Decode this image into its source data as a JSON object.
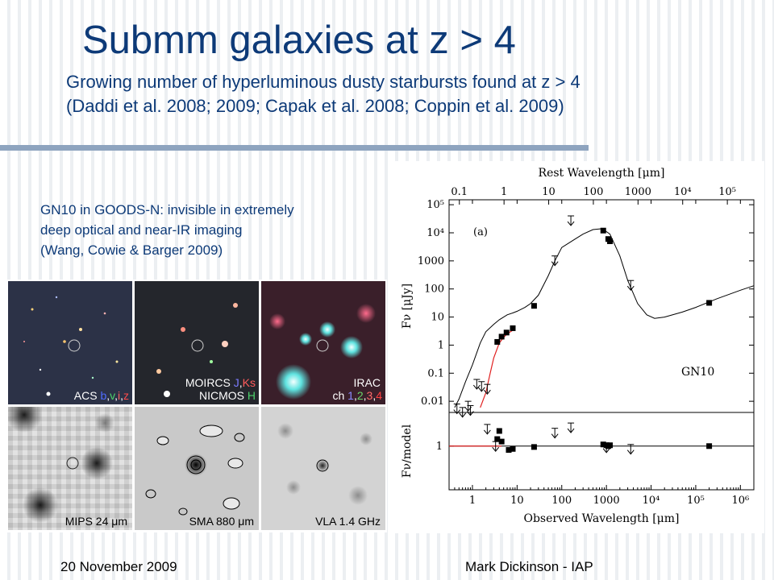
{
  "slide": {
    "title": "Submm galaxies at z > 4",
    "subtitle_lines": [
      "Growing number of hyperluminous dusty starbursts found at z > 4",
      "(Daddi et al. 2008; 2009; Capak et al. 2008; Coppin et al. 2009)"
    ],
    "caption_lines": [
      "GN10 in GOODS-N: invisible in extremely",
      "deep optical and near-IR imaging",
      "(Wang, Cowie & Barger 2009)"
    ],
    "footer_left": "20 November 2009",
    "footer_right": "Mark Dickinson - IAP",
    "colors": {
      "title": "#0d3a78",
      "rule": "#8ea4bf"
    }
  },
  "image_panels": [
    {
      "name": "acs",
      "label": "ACS",
      "bands": [
        {
          "t": "b",
          "c": "#4f6cff"
        },
        {
          "t": ",",
          "c": "#ffffff"
        },
        {
          "t": "v",
          "c": "#4bd16a"
        },
        {
          "t": ",",
          "c": "#ffffff"
        },
        {
          "t": "i",
          "c": "#ff6161"
        },
        {
          "t": ",",
          "c": "#ffffff"
        },
        {
          "t": "z",
          "c": "#ff4a4a"
        }
      ]
    },
    {
      "name": "moircs",
      "line1": "MOIRCS",
      "line1_bands": [
        {
          "t": "J",
          "c": "#7b7bff"
        },
        {
          "t": ",",
          "c": "#ffffff"
        },
        {
          "t": "Ks",
          "c": "#ff5b5b"
        }
      ],
      "line2": "NICMOS",
      "line2_band": "H",
      "line2_band_color": "#4bd16a"
    },
    {
      "name": "irac",
      "line1": "IRAC",
      "line2": "ch",
      "line2_bands": [
        {
          "t": "1",
          "c": "#8a8aff"
        },
        {
          "t": ",",
          "c": "#ffffff"
        },
        {
          "t": "2",
          "c": "#6ad46a"
        },
        {
          "t": ",",
          "c": "#ffffff"
        },
        {
          "t": "3",
          "c": "#ff6b6b"
        },
        {
          "t": ",",
          "c": "#ffffff"
        },
        {
          "t": "4",
          "c": "#ff4040"
        }
      ]
    },
    {
      "name": "mips",
      "label": "MIPS 24 μm"
    },
    {
      "name": "sma",
      "label": "SMA 880 μm"
    },
    {
      "name": "vla",
      "label": "VLA 1.4 GHz"
    }
  ],
  "chart_data": {
    "type": "scatter",
    "title": "",
    "top_axis_label": "Rest Wavelength [μm]",
    "top_ticks": [
      "0.1",
      "1",
      "10",
      "100",
      "1000",
      "10⁴",
      "10⁵"
    ],
    "x_label": "Observed Wavelength [μm]",
    "x_scale": "log",
    "x_range_um": [
      0.3,
      2000000
    ],
    "x_ticks": [
      "1",
      "10",
      "100",
      "1000",
      "10⁴",
      "10⁵",
      "10⁶"
    ],
    "upper_panel": {
      "y_label": "Fν [μJy]",
      "y_scale": "log",
      "y_range_ujy": [
        0.004,
        150000
      ],
      "y_ticks": [
        "0.01",
        "0.1",
        "1",
        "10",
        "100",
        "1000",
        "10⁴",
        "10⁵"
      ],
      "panel_letter": "(a)",
      "object_label": "GN10",
      "detections": [
        {
          "x": 3.6,
          "y": 1.3
        },
        {
          "x": 4.5,
          "y": 2.0
        },
        {
          "x": 5.8,
          "y": 2.8
        },
        {
          "x": 8.0,
          "y": 4.0
        },
        {
          "x": 24,
          "y": 25
        },
        {
          "x": 850,
          "y": 12000
        },
        {
          "x": 1100,
          "y": 6000
        },
        {
          "x": 1200,
          "y": 5000
        },
        {
          "x": 200000,
          "y": 32
        }
      ],
      "upper_limits": [
        {
          "x": 0.45,
          "y": 0.008
        },
        {
          "x": 0.6,
          "y": 0.006
        },
        {
          "x": 0.8,
          "y": 0.01
        },
        {
          "x": 0.9,
          "y": 0.007
        },
        {
          "x": 1.25,
          "y": 0.06
        },
        {
          "x": 1.6,
          "y": 0.05
        },
        {
          "x": 2.15,
          "y": 0.04
        },
        {
          "x": 70,
          "y": 1500
        },
        {
          "x": 160,
          "y": 40000
        },
        {
          "x": 3500,
          "y": 200
        }
      ],
      "model_curve": [
        {
          "x": 0.4,
          "y": 0.006
        },
        {
          "x": 0.5,
          "y": 0.012
        },
        {
          "x": 0.7,
          "y": 0.05
        },
        {
          "x": 1.0,
          "y": 0.2
        },
        {
          "x": 1.5,
          "y": 1.2
        },
        {
          "x": 2.0,
          "y": 3
        },
        {
          "x": 3.0,
          "y": 5.5
        },
        {
          "x": 4.0,
          "y": 8
        },
        {
          "x": 6.0,
          "y": 12
        },
        {
          "x": 8.0,
          "y": 14
        },
        {
          "x": 10,
          "y": 16
        },
        {
          "x": 15,
          "y": 22
        },
        {
          "x": 20,
          "y": 30
        },
        {
          "x": 30,
          "y": 60
        },
        {
          "x": 50,
          "y": 300
        },
        {
          "x": 70,
          "y": 1000
        },
        {
          "x": 100,
          "y": 3000
        },
        {
          "x": 150,
          "y": 4500
        },
        {
          "x": 200,
          "y": 6000
        },
        {
          "x": 300,
          "y": 9000
        },
        {
          "x": 500,
          "y": 13000
        },
        {
          "x": 800,
          "y": 14000
        },
        {
          "x": 1200,
          "y": 9000
        },
        {
          "x": 2000,
          "y": 1500
        },
        {
          "x": 3000,
          "y": 200
        },
        {
          "x": 5000,
          "y": 30
        },
        {
          "x": 8000,
          "y": 12
        },
        {
          "x": 12000,
          "y": 9
        },
        {
          "x": 20000,
          "y": 10
        },
        {
          "x": 50000,
          "y": 15
        },
        {
          "x": 100000,
          "y": 22
        },
        {
          "x": 300000,
          "y": 45
        },
        {
          "x": 1000000,
          "y": 90
        },
        {
          "x": 2000000,
          "y": 130
        }
      ],
      "stellar_curve": [
        {
          "x": 1.5,
          "y": 0.006
        },
        {
          "x": 2.0,
          "y": 0.02
        },
        {
          "x": 2.5,
          "y": 0.1
        },
        {
          "x": 3.0,
          "y": 0.35
        },
        {
          "x": 4.0,
          "y": 1.2
        },
        {
          "x": 5.0,
          "y": 1.9
        },
        {
          "x": 6.0,
          "y": 2.5
        },
        {
          "x": 8.0,
          "y": 3.4
        }
      ]
    },
    "lower_panel": {
      "y_label": "Fν/model",
      "y_scale": "log",
      "y_range": [
        0.08,
        7
      ],
      "y_ticks": [
        "1"
      ],
      "points": [
        {
          "x": 3.6,
          "y": 1.5
        },
        {
          "x": 4.0,
          "y": 2.4
        },
        {
          "x": 4.5,
          "y": 1.3
        },
        {
          "x": 6.5,
          "y": 0.8
        },
        {
          "x": 8.0,
          "y": 0.85
        },
        {
          "x": 24,
          "y": 0.95
        },
        {
          "x": 850,
          "y": 1.1
        },
        {
          "x": 1000,
          "y": 1.05
        },
        {
          "x": 1100,
          "y": 1.0
        },
        {
          "x": 1200,
          "y": 1.05
        },
        {
          "x": 200000,
          "y": 1.0
        }
      ],
      "upper_limits": [
        {
          "x": 2.15,
          "y": 3.5
        },
        {
          "x": 3.3,
          "y": 1.3
        },
        {
          "x": 70,
          "y": 2.8
        },
        {
          "x": 160,
          "y": 3.8
        },
        {
          "x": 1000,
          "y": 1.2
        },
        {
          "x": 3500,
          "y": 1.1
        }
      ]
    }
  }
}
